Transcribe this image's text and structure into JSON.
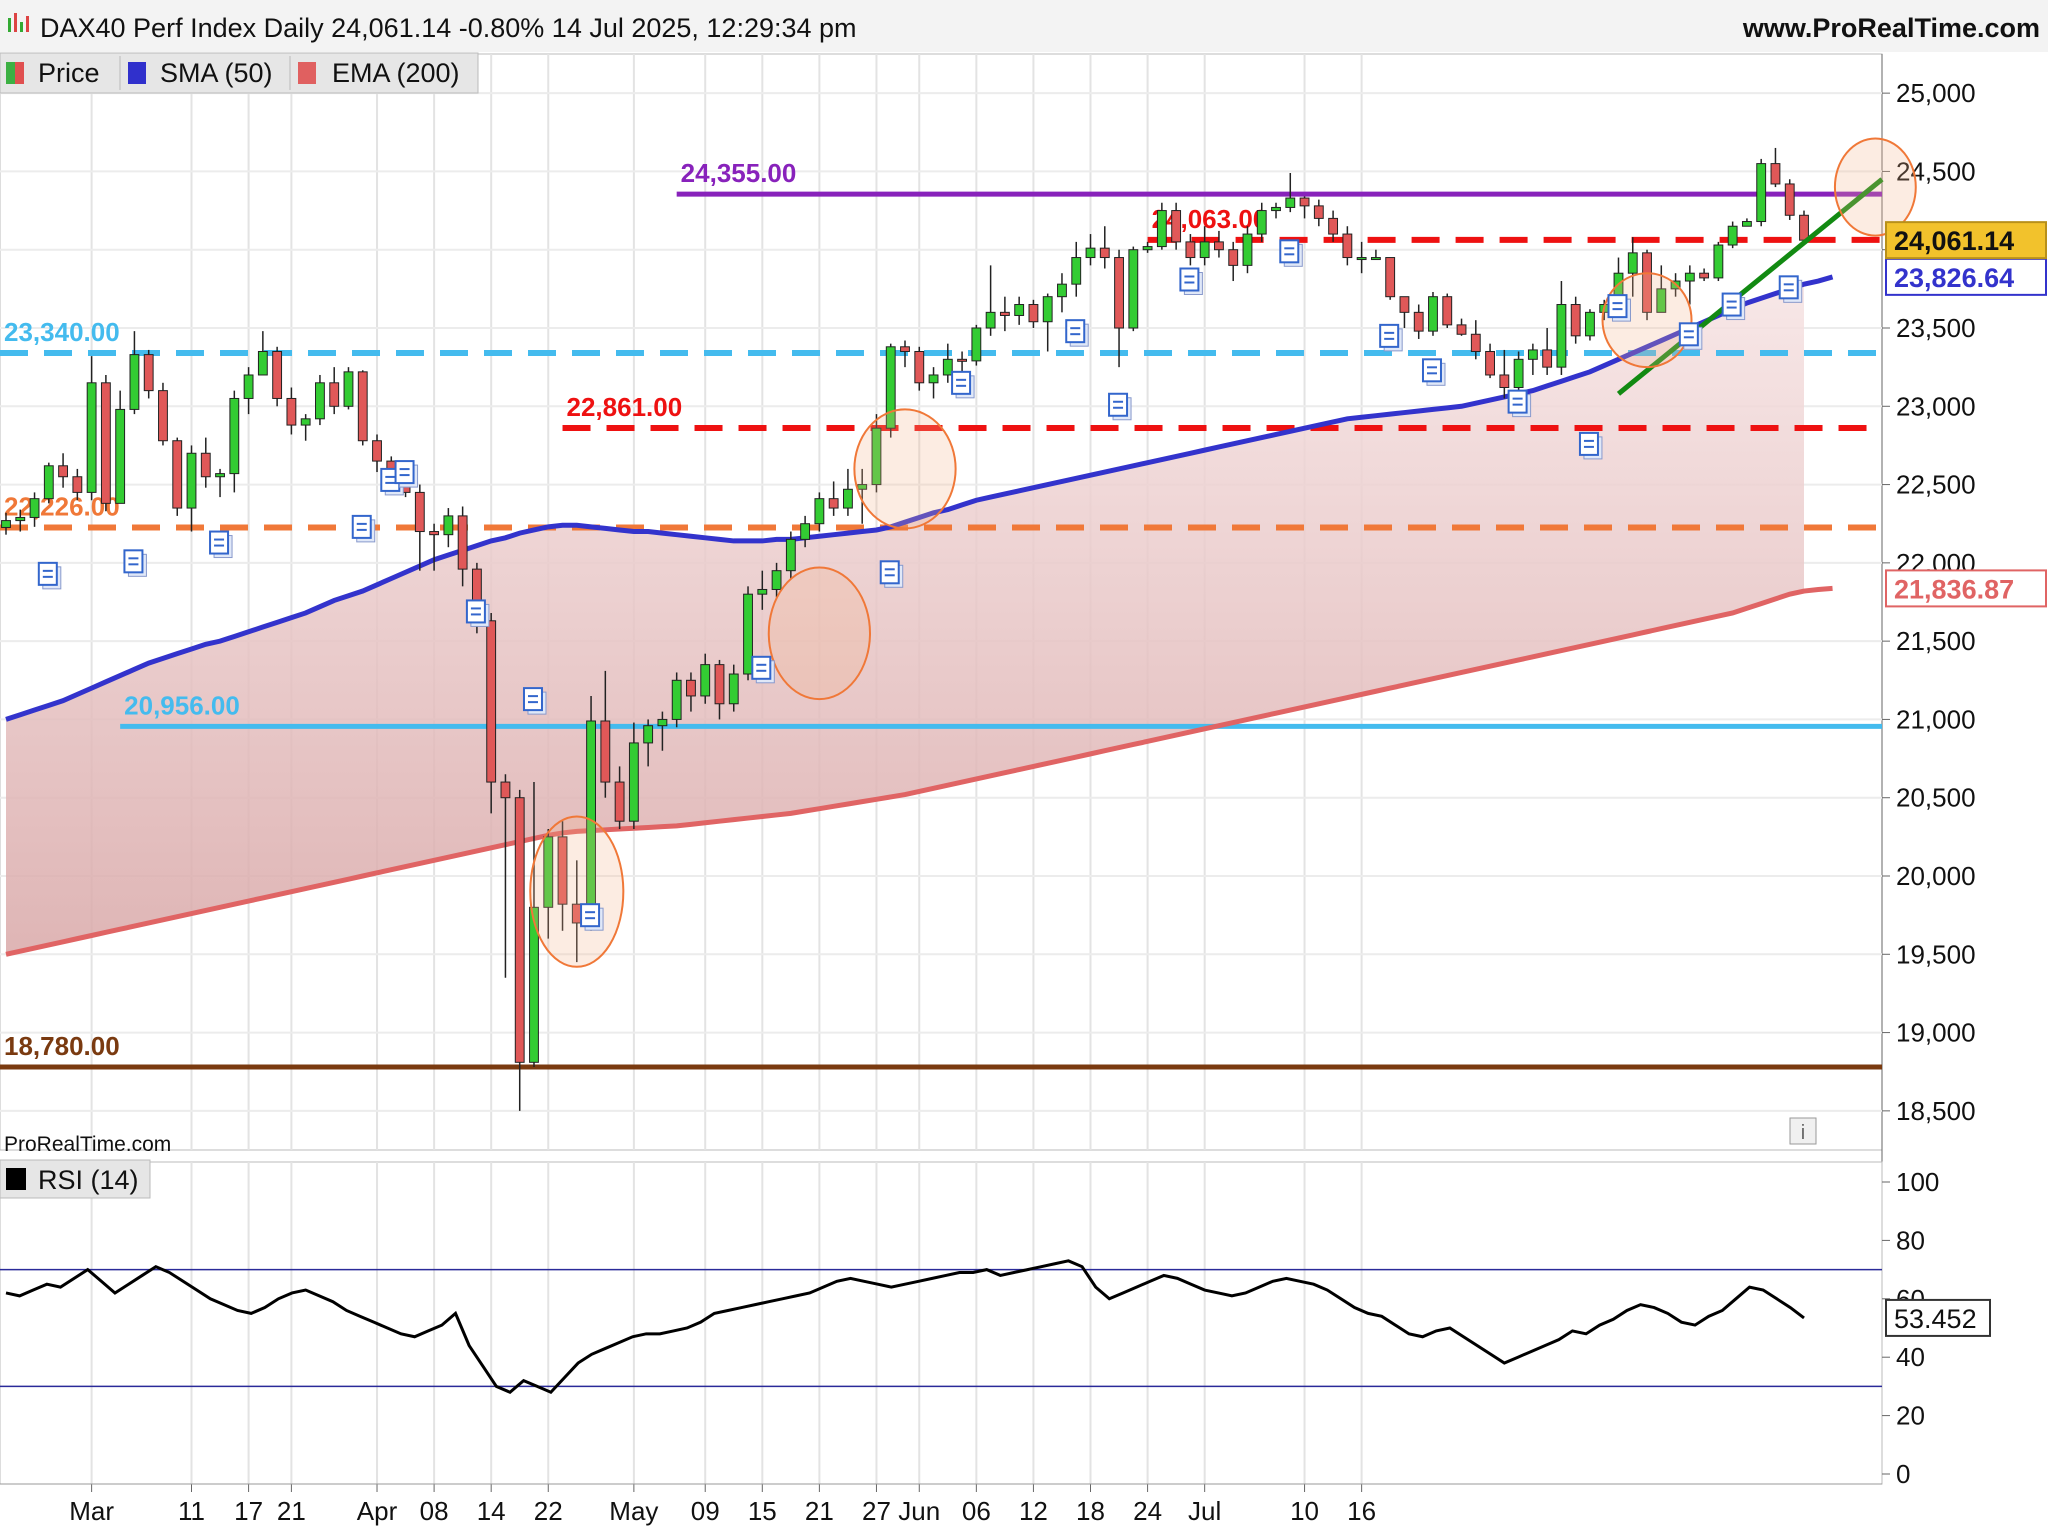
{
  "header": {
    "title": "DAX40 Perf Index Daily 24,061.14 -0.80% 14 Jul 2025, 12:29:34 pm",
    "site": "www.ProRealTime.com"
  },
  "legend": [
    {
      "label": "Price",
      "swatch": [
        "#3cb043",
        "#e05050"
      ]
    },
    {
      "label": "SMA (50)",
      "swatch": [
        "#3030cc",
        "#3030cc"
      ]
    },
    {
      "label": "EMA (200)",
      "swatch": [
        "#e06060",
        "#e06060"
      ]
    }
  ],
  "watermark": "ProRealTime.com",
  "rsi_legend": "RSI (14)",
  "colors": {
    "up": "#33cc33",
    "down": "#e05858",
    "sma": "#3333cc",
    "ema": "#e06464",
    "trend": "#128a12"
  },
  "chart_data": [
    {
      "type": "candlestick",
      "ylim": [
        18250,
        25250
      ],
      "yticks": [
        18500,
        19000,
        19500,
        20000,
        20500,
        21000,
        21500,
        22000,
        22500,
        23000,
        23500,
        24000,
        24500,
        25000
      ],
      "x_labels": [
        "Mar",
        "11",
        "17",
        "21",
        "Apr",
        "08",
        "14",
        "22",
        "May",
        "09",
        "15",
        "21",
        "27",
        "Jun",
        "06",
        "12",
        "18",
        "24",
        "Jul",
        "10",
        "16"
      ],
      "x_label_positions": [
        6,
        13,
        17,
        20,
        26,
        30,
        34,
        38,
        44,
        49,
        53,
        57,
        61,
        64,
        68,
        72,
        76,
        80,
        84,
        91,
        95
      ],
      "last_price": "24,061.14",
      "sma_value": "23,826.64",
      "ema_value": "21,836.87",
      "levels": [
        {
          "label": "24,355.00",
          "value": 24355,
          "color": "#8822bb",
          "style": "solid",
          "from": 47
        },
        {
          "label": "24,063.00",
          "value": 24063,
          "color": "#ee1111",
          "style": "dashed",
          "from": 80
        },
        {
          "label": "23,340.00",
          "value": 23340,
          "color": "#44bbee",
          "style": "dashed",
          "from": 0
        },
        {
          "label": "22,861.00",
          "value": 22861,
          "color": "#ee1111",
          "style": "dashed",
          "from": 39
        },
        {
          "label": "22,226.00",
          "value": 22226,
          "color": "#f07838",
          "style": "dashed",
          "from": 0
        },
        {
          "label": "20,956.00",
          "value": 20956,
          "color": "#44bbee",
          "style": "solid",
          "from": 8
        },
        {
          "label": "18,780.00",
          "value": 18780,
          "color": "#7a3a10",
          "style": "solid",
          "from": 0
        }
      ],
      "candles": [
        [
          22226,
          22320,
          22180,
          22270
        ],
        [
          22270,
          22340,
          22200,
          22290
        ],
        [
          22290,
          22450,
          22230,
          22410
        ],
        [
          22410,
          22640,
          22380,
          22620
        ],
        [
          22620,
          22700,
          22480,
          22550
        ],
        [
          22550,
          22600,
          22400,
          22450
        ],
        [
          22450,
          23320,
          22400,
          23150
        ],
        [
          23150,
          23200,
          22330,
          22380
        ],
        [
          22380,
          23100,
          22380,
          22980
        ],
        [
          22980,
          23480,
          22950,
          23330
        ],
        [
          23330,
          23360,
          23050,
          23100
        ],
        [
          23100,
          23150,
          22750,
          22780
        ],
        [
          22780,
          22800,
          22300,
          22350
        ],
        [
          22350,
          22750,
          22200,
          22700
        ],
        [
          22700,
          22800,
          22480,
          22550
        ],
        [
          22550,
          22600,
          22420,
          22570
        ],
        [
          22570,
          23100,
          22450,
          23050
        ],
        [
          23050,
          23250,
          22950,
          23200
        ],
        [
          23200,
          23480,
          23200,
          23350
        ],
        [
          23350,
          23380,
          23000,
          23050
        ],
        [
          23050,
          23120,
          22820,
          22880
        ],
        [
          22880,
          22950,
          22780,
          22920
        ],
        [
          22920,
          23200,
          22880,
          23150
        ],
        [
          23150,
          23250,
          22950,
          23000
        ],
        [
          23000,
          23250,
          22980,
          23220
        ],
        [
          23220,
          23230,
          22750,
          22780
        ],
        [
          22780,
          22820,
          22580,
          22650
        ],
        [
          22650,
          22680,
          22500,
          22550
        ],
        [
          22550,
          22620,
          22420,
          22450
        ],
        [
          22450,
          22500,
          21950,
          22200
        ],
        [
          22200,
          22250,
          21950,
          22180
        ],
        [
          22180,
          22350,
          22100,
          22300
        ],
        [
          22300,
          22360,
          21850,
          21960
        ],
        [
          21960,
          22000,
          21550,
          21630
        ],
        [
          21630,
          21680,
          20400,
          20600
        ],
        [
          20600,
          20650,
          19350,
          20500
        ],
        [
          20500,
          20550,
          18500,
          18810
        ],
        [
          18810,
          20600,
          18780,
          19800
        ],
        [
          19800,
          20300,
          19600,
          20250
        ],
        [
          20250,
          20350,
          19650,
          19820
        ],
        [
          19820,
          20100,
          19450,
          19700
        ],
        [
          19700,
          21150,
          19650,
          20990
        ],
        [
          20990,
          21310,
          20500,
          20600
        ],
        [
          20600,
          20700,
          20300,
          20350
        ],
        [
          20350,
          20980,
          20300,
          20850
        ],
        [
          20850,
          21000,
          20700,
          20960
        ],
        [
          20960,
          21050,
          20800,
          21000
        ],
        [
          21000,
          21300,
          20950,
          21250
        ],
        [
          21250,
          21300,
          21050,
          21150
        ],
        [
          21150,
          21420,
          21100,
          21350
        ],
        [
          21350,
          21380,
          21000,
          21100
        ],
        [
          21100,
          21350,
          21050,
          21290
        ],
        [
          21290,
          21850,
          21250,
          21800
        ],
        [
          21800,
          21950,
          21700,
          21830
        ],
        [
          21830,
          22000,
          21780,
          21950
        ],
        [
          21950,
          22200,
          21900,
          22150
        ],
        [
          22150,
          22300,
          22100,
          22250
        ],
        [
          22250,
          22450,
          22200,
          22410
        ],
        [
          22410,
          22520,
          22300,
          22350
        ],
        [
          22350,
          22600,
          22300,
          22470
        ],
        [
          22470,
          22600,
          22250,
          22500
        ],
        [
          22500,
          22950,
          22450,
          22860
        ],
        [
          22860,
          23400,
          22800,
          23380
        ],
        [
          23380,
          23420,
          23250,
          23350
        ],
        [
          23350,
          23380,
          23100,
          23150
        ],
        [
          23150,
          23250,
          23050,
          23200
        ],
        [
          23200,
          23400,
          23150,
          23300
        ],
        [
          23300,
          23350,
          23200,
          23290
        ],
        [
          23290,
          23520,
          23260,
          23500
        ],
        [
          23500,
          23900,
          23450,
          23600
        ],
        [
          23600,
          23700,
          23480,
          23580
        ],
        [
          23580,
          23700,
          23520,
          23650
        ],
        [
          23650,
          23680,
          23500,
          23540
        ],
        [
          23540,
          23720,
          23350,
          23700
        ],
        [
          23700,
          23850,
          23600,
          23780
        ],
        [
          23780,
          24050,
          23700,
          23950
        ],
        [
          23950,
          24100,
          23900,
          24010
        ],
        [
          24010,
          24150,
          23880,
          23950
        ],
        [
          23950,
          24000,
          23250,
          23500
        ],
        [
          23500,
          24020,
          23480,
          24000
        ],
        [
          24000,
          24050,
          23980,
          24020
        ],
        [
          24020,
          24300,
          24000,
          24250
        ],
        [
          24250,
          24300,
          24000,
          24050
        ],
        [
          24050,
          24100,
          23900,
          23950
        ],
        [
          23950,
          24150,
          23900,
          24050
        ],
        [
          24050,
          24120,
          23950,
          24000
        ],
        [
          24000,
          24050,
          23800,
          23900
        ],
        [
          23900,
          24150,
          23850,
          24100
        ],
        [
          24100,
          24300,
          24050,
          24250
        ],
        [
          24250,
          24300,
          24200,
          24270
        ],
        [
          24270,
          24490,
          24240,
          24330
        ],
        [
          24330,
          24340,
          24200,
          24280
        ],
        [
          24280,
          24320,
          24150,
          24200
        ],
        [
          24200,
          24250,
          24050,
          24100
        ],
        [
          24100,
          24150,
          23900,
          23950
        ],
        [
          23950,
          24050,
          23850,
          23950
        ],
        [
          23950,
          24000,
          23950,
          23950
        ],
        [
          23950,
          23950,
          23680,
          23700
        ],
        [
          23700,
          23700,
          23500,
          23600
        ],
        [
          23600,
          23650,
          23430,
          23480
        ],
        [
          23480,
          23730,
          23450,
          23700
        ],
        [
          23700,
          23720,
          23500,
          23520
        ],
        [
          23520,
          23560,
          23450,
          23460
        ],
        [
          23460,
          23550,
          23300,
          23350
        ],
        [
          23350,
          23400,
          23180,
          23200
        ],
        [
          23200,
          23360,
          23050,
          23120
        ],
        [
          23120,
          23350,
          23100,
          23300
        ],
        [
          23300,
          23400,
          23200,
          23360
        ],
        [
          23360,
          23500,
          23200,
          23250
        ],
        [
          23250,
          23800,
          23200,
          23650
        ],
        [
          23650,
          23700,
          23400,
          23450
        ],
        [
          23450,
          23620,
          23420,
          23600
        ],
        [
          23600,
          23680,
          23550,
          23650
        ],
        [
          23650,
          23950,
          23600,
          23850
        ],
        [
          23850,
          24080,
          23700,
          23980
        ],
        [
          23980,
          24000,
          23550,
          23600
        ],
        [
          23600,
          23900,
          23600,
          23750
        ],
        [
          23750,
          23850,
          23700,
          23800
        ],
        [
          23800,
          23900,
          23650,
          23850
        ],
        [
          23850,
          23880,
          23800,
          23820
        ],
        [
          23820,
          24050,
          23800,
          24030
        ],
        [
          24030,
          24180,
          24010,
          24150
        ],
        [
          24150,
          24200,
          24150,
          24180
        ],
        [
          24180,
          24580,
          24150,
          24550
        ],
        [
          24550,
          24650,
          24400,
          24420
        ],
        [
          24420,
          24450,
          24190,
          24220
        ],
        [
          24220,
          24250,
          24030,
          24061
        ]
      ],
      "sma": [
        21000,
        21030,
        21060,
        21090,
        21120,
        21160,
        21200,
        21240,
        21280,
        21320,
        21360,
        21390,
        21420,
        21450,
        21480,
        21500,
        21530,
        21560,
        21590,
        21620,
        21650,
        21680,
        21720,
        21760,
        21790,
        21820,
        21860,
        21900,
        21940,
        21980,
        22020,
        22050,
        22080,
        22110,
        22140,
        22160,
        22190,
        22210,
        22230,
        22240,
        22240,
        22230,
        22220,
        22210,
        22200,
        22200,
        22190,
        22180,
        22170,
        22160,
        22150,
        22140,
        22140,
        22140,
        22150,
        22150,
        22160,
        22170,
        22180,
        22190,
        22200,
        22210,
        22230,
        22260,
        22290,
        22320,
        22340,
        22370,
        22400,
        22420,
        22440,
        22460,
        22480,
        22500,
        22520,
        22540,
        22560,
        22580,
        22600,
        22620,
        22640,
        22660,
        22680,
        22700,
        22720,
        22740,
        22760,
        22780,
        22800,
        22820,
        22840,
        22860,
        22880,
        22900,
        22920,
        22930,
        22940,
        22950,
        22960,
        22970,
        22980,
        22990,
        23000,
        23020,
        23040,
        23060,
        23080,
        23100,
        23130,
        23160,
        23190,
        23220,
        23260,
        23300,
        23340,
        23380,
        23420,
        23460,
        23500,
        23540,
        23580,
        23620,
        23660,
        23690,
        23720,
        23750,
        23780,
        23800,
        23826
      ],
      "ema": [
        19500,
        19520,
        19540,
        19560,
        19580,
        19600,
        19620,
        19640,
        19660,
        19680,
        19700,
        19720,
        19740,
        19760,
        19780,
        19800,
        19820,
        19840,
        19860,
        19880,
        19900,
        19920,
        19940,
        19960,
        19980,
        20000,
        20020,
        20040,
        20060,
        20080,
        20100,
        20120,
        20140,
        20160,
        20180,
        20200,
        20220,
        20240,
        20260,
        20275,
        20285,
        20290,
        20295,
        20300,
        20305,
        20310,
        20315,
        20320,
        20330,
        20340,
        20350,
        20360,
        20370,
        20380,
        20390,
        20400,
        20415,
        20430,
        20445,
        20460,
        20475,
        20490,
        20505,
        20520,
        20540,
        20560,
        20580,
        20600,
        20620,
        20640,
        20660,
        20680,
        20700,
        20720,
        20740,
        20760,
        20780,
        20800,
        20820,
        20840,
        20860,
        20880,
        20900,
        20920,
        20940,
        20960,
        20980,
        21000,
        21020,
        21040,
        21060,
        21080,
        21100,
        21120,
        21140,
        21160,
        21180,
        21200,
        21220,
        21240,
        21260,
        21280,
        21300,
        21320,
        21340,
        21360,
        21380,
        21400,
        21420,
        21440,
        21460,
        21480,
        21500,
        21520,
        21540,
        21560,
        21580,
        21600,
        21620,
        21640,
        21660,
        21680,
        21710,
        21740,
        21770,
        21800,
        21820,
        21830,
        21837
      ]
    },
    {
      "type": "line",
      "title": "RSI (14)",
      "ylim": [
        0,
        100
      ],
      "yticks": [
        0,
        20,
        40,
        60,
        80,
        100
      ],
      "bands": [
        30,
        70
      ],
      "last_value": "53.452",
      "values": [
        62,
        61,
        63,
        65,
        64,
        67,
        70,
        66,
        62,
        65,
        68,
        71,
        69,
        66,
        63,
        60,
        58,
        56,
        55,
        57,
        60,
        62,
        63,
        61,
        59,
        56,
        54,
        52,
        50,
        48,
        47,
        49,
        51,
        55,
        44,
        37,
        30,
        28,
        32,
        30,
        28,
        33,
        38,
        41,
        43,
        45,
        47,
        48,
        48,
        49,
        50,
        52,
        55,
        56,
        57,
        58,
        59,
        60,
        61,
        62,
        64,
        66,
        67,
        66,
        65,
        64,
        65,
        66,
        67,
        68,
        69,
        69,
        70,
        68,
        69,
        70,
        71,
        72,
        73,
        71,
        64,
        60,
        62,
        64,
        66,
        68,
        67,
        65,
        63,
        62,
        61,
        62,
        64,
        66,
        67,
        66,
        65,
        63,
        60,
        57,
        55,
        54,
        51,
        48,
        47,
        49,
        50,
        47,
        44,
        41,
        38,
        40,
        42,
        44,
        46,
        49,
        48,
        51,
        53,
        56,
        58,
        57,
        55,
        52,
        51,
        54,
        56,
        60,
        64,
        63,
        60,
        57,
        53.45
      ]
    }
  ]
}
